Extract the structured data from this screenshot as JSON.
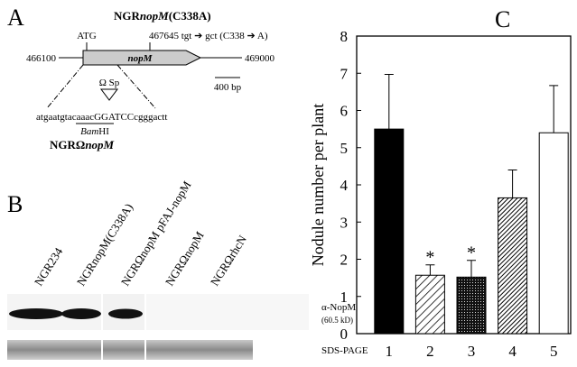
{
  "panel_a": {
    "letter": "A",
    "construct_title": [
      "NGR",
      "nopM",
      "(C338A)"
    ],
    "start_codon": "ATG",
    "mutation": "467645 tgt ➔ gct  (C338 ➔ A)",
    "left_coord": "466100",
    "right_coord": "469000",
    "gene": "nopM",
    "scale_bar": "400 bp",
    "insert": "Ω Sp",
    "sequence": "atgaatgtacaaacGGATCCcgggactt",
    "site": [
      "Bam",
      "HI"
    ],
    "mutant_name": [
      "NGRΩ",
      "nopM"
    ]
  },
  "panel_b": {
    "letter": "B",
    "lanes": [
      "NGR234",
      "NGRnopM(C338A)",
      "NGRΩnopM pFAJ-nopM",
      "NGRΩnopM",
      "NGRΩrhcN"
    ],
    "blot_label": "α-NopM",
    "blot_size": "(60.5 kD)",
    "gel_label": "SDS-PAGE"
  },
  "chart_data": {
    "type": "bar",
    "letter": "C",
    "y_label": "Nodule number per plant",
    "categories": [
      "1",
      "2",
      "3",
      "4",
      "5"
    ],
    "values": [
      5.5,
      1.57,
      1.52,
      3.65,
      5.4
    ],
    "errors": [
      1.47,
      0.28,
      0.45,
      0.75,
      1.27
    ],
    "annotations": [
      {
        "text": "*",
        "category": "2"
      },
      {
        "text": "*",
        "category": "3"
      }
    ],
    "ylim": [
      0,
      8
    ],
    "yticks": [
      0,
      1,
      2,
      3,
      4,
      5,
      6,
      7,
      8
    ]
  }
}
